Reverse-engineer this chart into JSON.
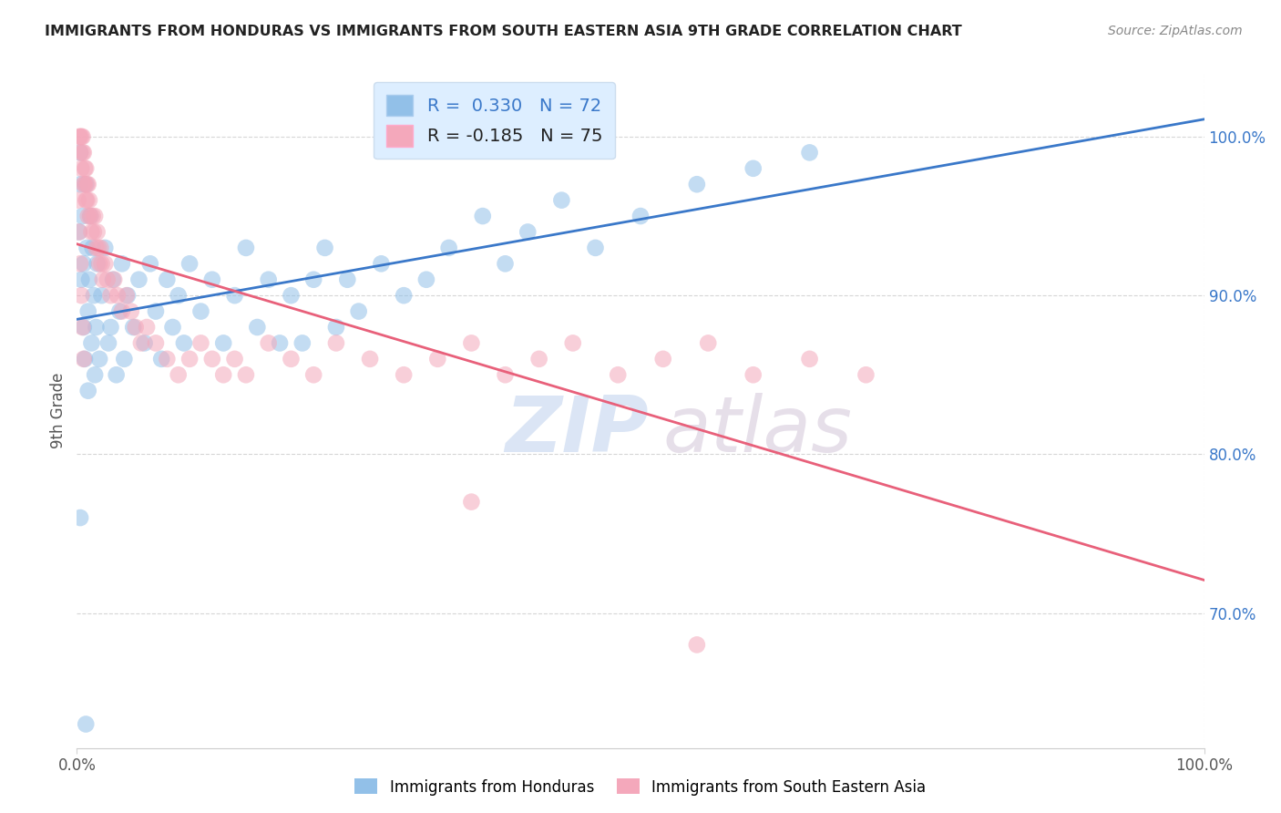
{
  "title": "IMMIGRANTS FROM HONDURAS VS IMMIGRANTS FROM SOUTH EASTERN ASIA 9TH GRADE CORRELATION CHART",
  "source": "Source: ZipAtlas.com",
  "ylabel": "9th Grade",
  "yticks": [
    "100.0%",
    "90.0%",
    "80.0%",
    "70.0%"
  ],
  "ytick_values": [
    1.0,
    0.9,
    0.8,
    0.7
  ],
  "xticks": [
    "0.0%",
    "100.0%"
  ],
  "xlim": [
    0.0,
    1.0
  ],
  "ylim": [
    0.615,
    1.04
  ],
  "blue_R": 0.33,
  "blue_N": 72,
  "pink_R": -0.185,
  "pink_N": 75,
  "blue_color": "#92c0e8",
  "pink_color": "#f4a8bb",
  "trend_blue": "#3a78c9",
  "trend_pink": "#e8607a",
  "legend_box_color": "#ddeeff",
  "watermark_zip": "ZIP",
  "watermark_atlas": "atlas",
  "blue_scatter_x": [
    0.002,
    0.003,
    0.003,
    0.004,
    0.005,
    0.006,
    0.006,
    0.007,
    0.008,
    0.009,
    0.01,
    0.01,
    0.011,
    0.012,
    0.013,
    0.014,
    0.015,
    0.016,
    0.017,
    0.018,
    0.02,
    0.022,
    0.025,
    0.028,
    0.03,
    0.032,
    0.035,
    0.038,
    0.04,
    0.042,
    0.045,
    0.05,
    0.055,
    0.06,
    0.065,
    0.07,
    0.075,
    0.08,
    0.085,
    0.09,
    0.095,
    0.1,
    0.11,
    0.12,
    0.13,
    0.14,
    0.15,
    0.16,
    0.17,
    0.18,
    0.19,
    0.2,
    0.21,
    0.22,
    0.23,
    0.24,
    0.25,
    0.27,
    0.29,
    0.31,
    0.33,
    0.36,
    0.38,
    0.4,
    0.43,
    0.46,
    0.5,
    0.55,
    0.6,
    0.65,
    0.003,
    0.008
  ],
  "blue_scatter_y": [
    0.94,
    0.97,
    0.99,
    0.91,
    0.95,
    0.88,
    0.92,
    0.86,
    0.97,
    0.93,
    0.89,
    0.84,
    0.91,
    0.95,
    0.87,
    0.93,
    0.9,
    0.85,
    0.88,
    0.92,
    0.86,
    0.9,
    0.93,
    0.87,
    0.88,
    0.91,
    0.85,
    0.89,
    0.92,
    0.86,
    0.9,
    0.88,
    0.91,
    0.87,
    0.92,
    0.89,
    0.86,
    0.91,
    0.88,
    0.9,
    0.87,
    0.92,
    0.89,
    0.91,
    0.87,
    0.9,
    0.93,
    0.88,
    0.91,
    0.87,
    0.9,
    0.87,
    0.91,
    0.93,
    0.88,
    0.91,
    0.89,
    0.92,
    0.9,
    0.91,
    0.93,
    0.95,
    0.92,
    0.94,
    0.96,
    0.93,
    0.95,
    0.97,
    0.98,
    0.99,
    0.76,
    0.63
  ],
  "pink_scatter_x": [
    0.002,
    0.003,
    0.003,
    0.004,
    0.004,
    0.005,
    0.005,
    0.006,
    0.006,
    0.007,
    0.007,
    0.008,
    0.008,
    0.009,
    0.009,
    0.01,
    0.01,
    0.011,
    0.012,
    0.013,
    0.014,
    0.015,
    0.016,
    0.017,
    0.018,
    0.019,
    0.02,
    0.021,
    0.022,
    0.023,
    0.025,
    0.027,
    0.03,
    0.033,
    0.036,
    0.04,
    0.044,
    0.048,
    0.052,
    0.057,
    0.062,
    0.07,
    0.08,
    0.09,
    0.1,
    0.11,
    0.12,
    0.13,
    0.14,
    0.15,
    0.17,
    0.19,
    0.21,
    0.23,
    0.26,
    0.29,
    0.32,
    0.35,
    0.38,
    0.41,
    0.44,
    0.48,
    0.52,
    0.56,
    0.6,
    0.65,
    0.7,
    0.001,
    0.002,
    0.003,
    0.004,
    0.005,
    0.006,
    0.35,
    0.55
  ],
  "pink_scatter_y": [
    1.0,
    1.0,
    0.99,
    1.0,
    0.98,
    0.99,
    1.0,
    0.97,
    0.99,
    0.98,
    0.97,
    0.96,
    0.98,
    0.97,
    0.96,
    0.95,
    0.97,
    0.96,
    0.95,
    0.94,
    0.95,
    0.94,
    0.95,
    0.93,
    0.94,
    0.93,
    0.92,
    0.93,
    0.92,
    0.91,
    0.92,
    0.91,
    0.9,
    0.91,
    0.9,
    0.89,
    0.9,
    0.89,
    0.88,
    0.87,
    0.88,
    0.87,
    0.86,
    0.85,
    0.86,
    0.87,
    0.86,
    0.85,
    0.86,
    0.85,
    0.87,
    0.86,
    0.85,
    0.87,
    0.86,
    0.85,
    0.86,
    0.87,
    0.85,
    0.86,
    0.87,
    0.85,
    0.86,
    0.87,
    0.85,
    0.86,
    0.85,
    0.96,
    0.94,
    0.92,
    0.9,
    0.88,
    0.86,
    0.77,
    0.68
  ]
}
